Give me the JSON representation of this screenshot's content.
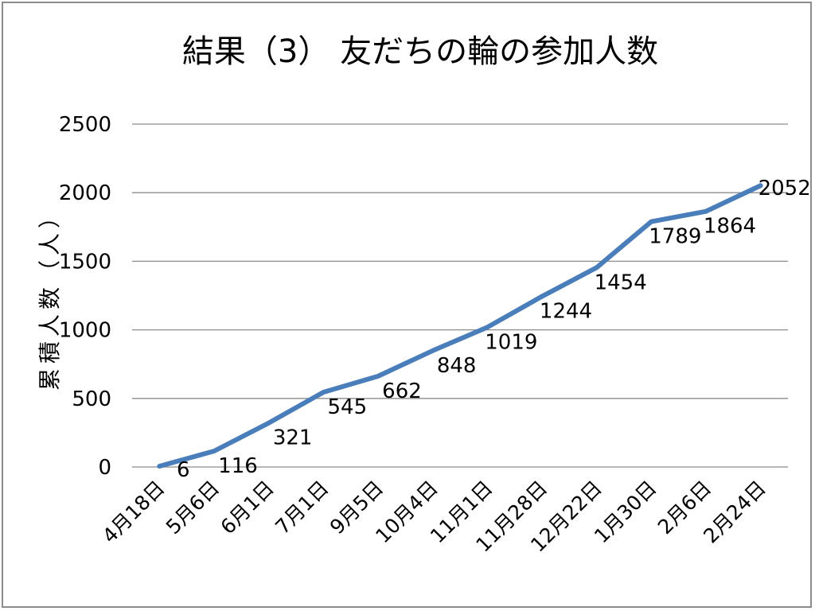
{
  "chart_data": {
    "type": "line",
    "title": "結果（3） 友だちの輪の参加人数",
    "xlabel": "",
    "ylabel": "累積人数（人）",
    "categories": [
      "4月18日",
      "5月6日",
      "6月1日",
      "7月1日",
      "9月5日",
      "10月4日",
      "11月1日",
      "11月28日",
      "12月22日",
      "1月30日",
      "2月6日",
      "2月24日"
    ],
    "series": [
      {
        "values": [
          6,
          116,
          321,
          545,
          662,
          848,
          1019,
          1244,
          1454,
          1789,
          1864,
          2052
        ]
      }
    ],
    "ylim": [
      0,
      2500
    ],
    "yticks": [
      0,
      500,
      1000,
      1500,
      2000,
      2500
    ],
    "grid": true,
    "legend": "none",
    "colors": {
      "line": "#4a7ebb",
      "grid": "#8c8c8c",
      "border": "#8c8c8c"
    }
  }
}
